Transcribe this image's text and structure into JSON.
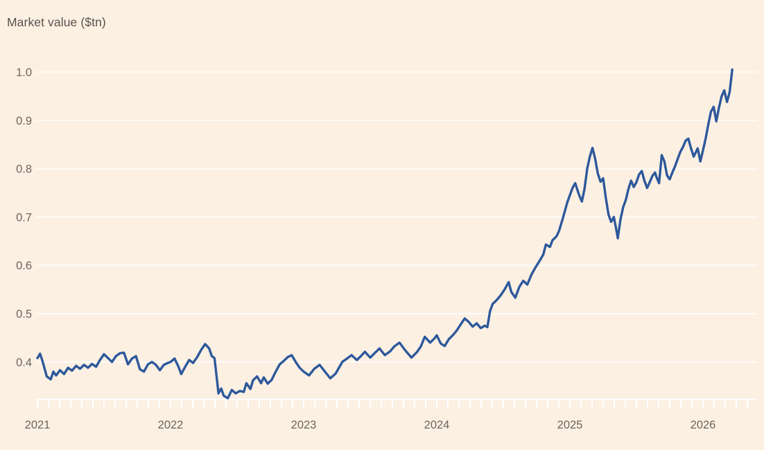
{
  "title": "Market value ($tn)",
  "colors": {
    "background": "#fcf0e3",
    "line": "#2d589b",
    "gridline": "rgba(255,255,255,0.72)",
    "axis": "rgba(255,255,255,0.95)",
    "title_text": "#57524d",
    "tick_text": "#6b655f"
  },
  "chart_data": {
    "type": "line",
    "title": "Market value ($tn)",
    "xlabel": "",
    "ylabel": "Market value ($tn)",
    "legend": "none",
    "grid": "horizontal-only",
    "xlim": [
      2021.0,
      2026.42
    ],
    "ylim": [
      0.322,
      1.05
    ],
    "x_ticks": [
      {
        "value": 2021,
        "label": "2021"
      },
      {
        "value": 2022,
        "label": "2022"
      },
      {
        "value": 2023,
        "label": "2023"
      },
      {
        "value": 2024,
        "label": "2024"
      },
      {
        "value": 2025,
        "label": "2025"
      },
      {
        "value": 2026,
        "label": "2026"
      }
    ],
    "x_minor_tick_interval_years": 0.0833333,
    "y_ticks": [
      {
        "value": 0.4,
        "label": "0.4"
      },
      {
        "value": 0.5,
        "label": "0.5"
      },
      {
        "value": 0.6,
        "label": "0.6"
      },
      {
        "value": 0.7,
        "label": "0.7"
      },
      {
        "value": 0.8,
        "label": "0.8"
      },
      {
        "value": 0.9,
        "label": "0.9"
      },
      {
        "value": 1.0,
        "label": "1.0"
      }
    ],
    "series": [
      {
        "name": "Market value ($tn)",
        "points": [
          [
            2021.0,
            0.408
          ],
          [
            2021.02,
            0.417
          ],
          [
            2021.04,
            0.4
          ],
          [
            2021.07,
            0.37
          ],
          [
            2021.1,
            0.364
          ],
          [
            2021.12,
            0.38
          ],
          [
            2021.14,
            0.372
          ],
          [
            2021.17,
            0.383
          ],
          [
            2021.2,
            0.375
          ],
          [
            2021.23,
            0.388
          ],
          [
            2021.26,
            0.382
          ],
          [
            2021.29,
            0.392
          ],
          [
            2021.32,
            0.386
          ],
          [
            2021.35,
            0.394
          ],
          [
            2021.38,
            0.388
          ],
          [
            2021.41,
            0.396
          ],
          [
            2021.44,
            0.39
          ],
          [
            2021.47,
            0.404
          ],
          [
            2021.5,
            0.416
          ],
          [
            2021.53,
            0.408
          ],
          [
            2021.56,
            0.4
          ],
          [
            2021.59,
            0.412
          ],
          [
            2021.62,
            0.418
          ],
          [
            2021.65,
            0.419
          ],
          [
            2021.68,
            0.395
          ],
          [
            2021.71,
            0.407
          ],
          [
            2021.74,
            0.412
          ],
          [
            2021.77,
            0.385
          ],
          [
            2021.8,
            0.38
          ],
          [
            2021.83,
            0.395
          ],
          [
            2021.86,
            0.4
          ],
          [
            2021.89,
            0.394
          ],
          [
            2021.92,
            0.383
          ],
          [
            2021.95,
            0.394
          ],
          [
            2021.98,
            0.398
          ],
          [
            2022.0,
            0.4
          ],
          [
            2022.03,
            0.407
          ],
          [
            2022.06,
            0.39
          ],
          [
            2022.08,
            0.375
          ],
          [
            2022.11,
            0.39
          ],
          [
            2022.14,
            0.404
          ],
          [
            2022.17,
            0.398
          ],
          [
            2022.2,
            0.41
          ],
          [
            2022.23,
            0.425
          ],
          [
            2022.26,
            0.437
          ],
          [
            2022.29,
            0.428
          ],
          [
            2022.31,
            0.412
          ],
          [
            2022.33,
            0.408
          ],
          [
            2022.35,
            0.36
          ],
          [
            2022.36,
            0.335
          ],
          [
            2022.38,
            0.345
          ],
          [
            2022.4,
            0.33
          ],
          [
            2022.43,
            0.325
          ],
          [
            2022.46,
            0.342
          ],
          [
            2022.49,
            0.335
          ],
          [
            2022.52,
            0.34
          ],
          [
            2022.55,
            0.338
          ],
          [
            2022.57,
            0.356
          ],
          [
            2022.6,
            0.344
          ],
          [
            2022.62,
            0.362
          ],
          [
            2022.65,
            0.37
          ],
          [
            2022.68,
            0.356
          ],
          [
            2022.7,
            0.368
          ],
          [
            2022.73,
            0.355
          ],
          [
            2022.76,
            0.363
          ],
          [
            2022.79,
            0.38
          ],
          [
            2022.82,
            0.395
          ],
          [
            2022.85,
            0.402
          ],
          [
            2022.88,
            0.41
          ],
          [
            2022.91,
            0.414
          ],
          [
            2022.94,
            0.4
          ],
          [
            2022.97,
            0.388
          ],
          [
            2023.0,
            0.38
          ],
          [
            2023.04,
            0.372
          ],
          [
            2023.08,
            0.386
          ],
          [
            2023.12,
            0.394
          ],
          [
            2023.16,
            0.38
          ],
          [
            2023.2,
            0.366
          ],
          [
            2023.24,
            0.376
          ],
          [
            2023.29,
            0.4
          ],
          [
            2023.33,
            0.408
          ],
          [
            2023.36,
            0.414
          ],
          [
            2023.4,
            0.404
          ],
          [
            2023.43,
            0.412
          ],
          [
            2023.46,
            0.421
          ],
          [
            2023.5,
            0.409
          ],
          [
            2023.54,
            0.42
          ],
          [
            2023.57,
            0.428
          ],
          [
            2023.61,
            0.414
          ],
          [
            2023.65,
            0.422
          ],
          [
            2023.68,
            0.432
          ],
          [
            2023.72,
            0.44
          ],
          [
            2023.76,
            0.425
          ],
          [
            2023.81,
            0.409
          ],
          [
            2023.85,
            0.42
          ],
          [
            2023.88,
            0.432
          ],
          [
            2023.91,
            0.452
          ],
          [
            2023.95,
            0.44
          ],
          [
            2023.98,
            0.448
          ],
          [
            2024.0,
            0.455
          ],
          [
            2024.03,
            0.438
          ],
          [
            2024.06,
            0.433
          ],
          [
            2024.09,
            0.447
          ],
          [
            2024.12,
            0.455
          ],
          [
            2024.15,
            0.465
          ],
          [
            2024.18,
            0.478
          ],
          [
            2024.21,
            0.49
          ],
          [
            2024.24,
            0.483
          ],
          [
            2024.27,
            0.473
          ],
          [
            2024.3,
            0.48
          ],
          [
            2024.33,
            0.47
          ],
          [
            2024.36,
            0.475
          ],
          [
            2024.38,
            0.472
          ],
          [
            2024.4,
            0.505
          ],
          [
            2024.42,
            0.52
          ],
          [
            2024.45,
            0.528
          ],
          [
            2024.48,
            0.538
          ],
          [
            2024.51,
            0.55
          ],
          [
            2024.54,
            0.565
          ],
          [
            2024.56,
            0.545
          ],
          [
            2024.59,
            0.533
          ],
          [
            2024.62,
            0.555
          ],
          [
            2024.65,
            0.568
          ],
          [
            2024.68,
            0.56
          ],
          [
            2024.71,
            0.58
          ],
          [
            2024.74,
            0.595
          ],
          [
            2024.77,
            0.608
          ],
          [
            2024.8,
            0.622
          ],
          [
            2024.82,
            0.643
          ],
          [
            2024.85,
            0.638
          ],
          [
            2024.87,
            0.652
          ],
          [
            2024.9,
            0.66
          ],
          [
            2024.92,
            0.672
          ],
          [
            2024.95,
            0.7
          ],
          [
            2024.98,
            0.73
          ],
          [
            2025.0,
            0.745
          ],
          [
            2025.02,
            0.76
          ],
          [
            2025.04,
            0.77
          ],
          [
            2025.07,
            0.745
          ],
          [
            2025.09,
            0.732
          ],
          [
            2025.11,
            0.758
          ],
          [
            2025.13,
            0.8
          ],
          [
            2025.15,
            0.825
          ],
          [
            2025.17,
            0.843
          ],
          [
            2025.19,
            0.82
          ],
          [
            2025.21,
            0.79
          ],
          [
            2025.23,
            0.773
          ],
          [
            2025.25,
            0.78
          ],
          [
            2025.27,
            0.74
          ],
          [
            2025.29,
            0.705
          ],
          [
            2025.31,
            0.69
          ],
          [
            2025.33,
            0.7
          ],
          [
            2025.35,
            0.672
          ],
          [
            2025.36,
            0.656
          ],
          [
            2025.38,
            0.695
          ],
          [
            2025.4,
            0.72
          ],
          [
            2025.42,
            0.735
          ],
          [
            2025.44,
            0.758
          ],
          [
            2025.46,
            0.775
          ],
          [
            2025.48,
            0.762
          ],
          [
            2025.5,
            0.772
          ],
          [
            2025.52,
            0.788
          ],
          [
            2025.54,
            0.795
          ],
          [
            2025.56,
            0.775
          ],
          [
            2025.58,
            0.76
          ],
          [
            2025.6,
            0.772
          ],
          [
            2025.62,
            0.785
          ],
          [
            2025.64,
            0.792
          ],
          [
            2025.65,
            0.783
          ],
          [
            2025.67,
            0.77
          ],
          [
            2025.69,
            0.828
          ],
          [
            2025.71,
            0.815
          ],
          [
            2025.73,
            0.786
          ],
          [
            2025.75,
            0.778
          ],
          [
            2025.77,
            0.792
          ],
          [
            2025.79,
            0.805
          ],
          [
            2025.81,
            0.82
          ],
          [
            2025.83,
            0.835
          ],
          [
            2025.85,
            0.845
          ],
          [
            2025.87,
            0.858
          ],
          [
            2025.89,
            0.862
          ],
          [
            2025.91,
            0.842
          ],
          [
            2025.93,
            0.825
          ],
          [
            2025.96,
            0.842
          ],
          [
            2025.98,
            0.815
          ],
          [
            2026.0,
            0.838
          ],
          [
            2026.02,
            0.862
          ],
          [
            2026.04,
            0.892
          ],
          [
            2026.06,
            0.918
          ],
          [
            2026.08,
            0.928
          ],
          [
            2026.1,
            0.898
          ],
          [
            2026.12,
            0.926
          ],
          [
            2026.14,
            0.95
          ],
          [
            2026.16,
            0.962
          ],
          [
            2026.18,
            0.938
          ],
          [
            2026.2,
            0.958
          ],
          [
            2026.22,
            1.005
          ]
        ]
      }
    ]
  }
}
